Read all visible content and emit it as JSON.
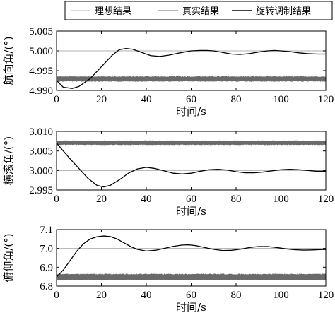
{
  "legend": {
    "entries": [
      {
        "label": "理想结果",
        "color": "#b0b0b0",
        "width": 1
      },
      {
        "label": "真实结果",
        "color": "#6a6a6a",
        "width": 1
      },
      {
        "label": "旋转调制结果",
        "color": "#000000",
        "width": 1.6
      }
    ]
  },
  "chart_data": [
    {
      "type": "line",
      "xlabel": "时间/s",
      "ylabel": "航向角/(°)",
      "xlim": [
        0,
        120
      ],
      "ylim": [
        4.99,
        5.005
      ],
      "xticks": [
        0,
        20,
        40,
        60,
        80,
        100,
        120
      ],
      "yticks": [
        4.99,
        4.995,
        5.0,
        5.005
      ],
      "ytick_labels": [
        "4.990",
        "4.995",
        "5.000",
        "5.005"
      ],
      "grid": true,
      "series": [
        {
          "name": "理想结果",
          "style": "constant",
          "value": 5.0
        },
        {
          "name": "真实结果",
          "style": "noise_band",
          "center": 4.9929,
          "amplitude": 0.0007
        },
        {
          "name": "旋转调制结果",
          "style": "line",
          "x": [
            0,
            3,
            7,
            10,
            15,
            20,
            25,
            28,
            31,
            34,
            38,
            42,
            46,
            50,
            55,
            60,
            64,
            67,
            70,
            74,
            78,
            82,
            86,
            90,
            94,
            97,
            100,
            104,
            108,
            112,
            116,
            120
          ],
          "y": [
            4.9925,
            4.9908,
            4.9905,
            4.991,
            4.993,
            4.996,
            4.999,
            5.0003,
            5.0006,
            5.0004,
            4.9996,
            4.9988,
            4.9986,
            4.9989,
            4.9995,
            5.0,
            5.0001,
            5.0001,
            5.0,
            4.9996,
            4.9992,
            4.9991,
            4.9993,
            4.9997,
            5.0,
            5.0001,
            5.0,
            4.9998,
            4.9995,
            4.9993,
            4.9992,
            4.9992
          ]
        }
      ]
    },
    {
      "type": "line",
      "xlabel": "时间/s",
      "ylabel": "横滚角/(°)",
      "xlim": [
        0,
        120
      ],
      "ylim": [
        2.995,
        3.01
      ],
      "xticks": [
        0,
        20,
        40,
        60,
        80,
        100,
        120
      ],
      "yticks": [
        2.995,
        3.0,
        3.005,
        3.01
      ],
      "ytick_labels": [
        "2.995",
        "3.000",
        "3.005",
        "3.010"
      ],
      "grid": true,
      "series": [
        {
          "name": "理想结果",
          "style": "constant",
          "value": 3.0
        },
        {
          "name": "真实结果",
          "style": "noise_band",
          "center": 3.0071,
          "amplitude": 0.0006
        },
        {
          "name": "旋转调制结果",
          "style": "line",
          "x": [
            0,
            3,
            6,
            10,
            14,
            18,
            21,
            24,
            28,
            32,
            36,
            40,
            44,
            48,
            52,
            56,
            60,
            64,
            68,
            72,
            76,
            80,
            84,
            88,
            92,
            96,
            100,
            104,
            108,
            112,
            116,
            120
          ],
          "y": [
            3.007,
            3.005,
            3.003,
            3.0005,
            2.998,
            2.9962,
            2.9958,
            2.9962,
            2.9976,
            2.9993,
            3.0004,
            3.0008,
            3.0005,
            2.9999,
            2.9993,
            2.9991,
            2.9993,
            2.9998,
            3.0002,
            3.0003,
            3.0001,
            2.9997,
            2.9994,
            2.9994,
            2.9996,
            2.9999,
            3.0002,
            3.0003,
            3.0002,
            3.0,
            2.9998,
            2.9998
          ]
        }
      ]
    },
    {
      "type": "line",
      "xlabel": "时间/s",
      "ylabel": "俯仰角/(°)",
      "xlim": [
        0,
        120
      ],
      "ylim": [
        6.8,
        7.1
      ],
      "xticks": [
        0,
        20,
        40,
        60,
        80,
        100,
        120
      ],
      "yticks": [
        6.8,
        6.9,
        7.0,
        7.1
      ],
      "ytick_labels": [
        "6.8",
        "6.9",
        "7.0",
        "7.1"
      ],
      "grid": true,
      "series": [
        {
          "name": "理想结果",
          "style": "constant",
          "value": 7.0
        },
        {
          "name": "真实结果",
          "style": "noise_band",
          "center": 6.848,
          "amplitude": 0.018
        },
        {
          "name": "旋转调制结果",
          "style": "line",
          "x": [
            0,
            3,
            6,
            9,
            12,
            15,
            18,
            21,
            24,
            27,
            30,
            33,
            36,
            40,
            44,
            48,
            52,
            56,
            59,
            62,
            66,
            70,
            74,
            78,
            82,
            86,
            90,
            94,
            98,
            102,
            106,
            110,
            114,
            118,
            120
          ],
          "y": [
            6.848,
            6.885,
            6.935,
            6.985,
            7.025,
            7.05,
            7.062,
            7.066,
            7.063,
            7.05,
            7.03,
            7.01,
            6.995,
            6.986,
            6.99,
            7.0,
            7.011,
            7.018,
            7.019,
            7.015,
            7.005,
            6.995,
            6.989,
            6.99,
            6.996,
            7.005,
            7.01,
            7.01,
            7.005,
            6.998,
            6.993,
            6.991,
            6.992,
            6.994,
            6.994
          ]
        }
      ]
    }
  ]
}
